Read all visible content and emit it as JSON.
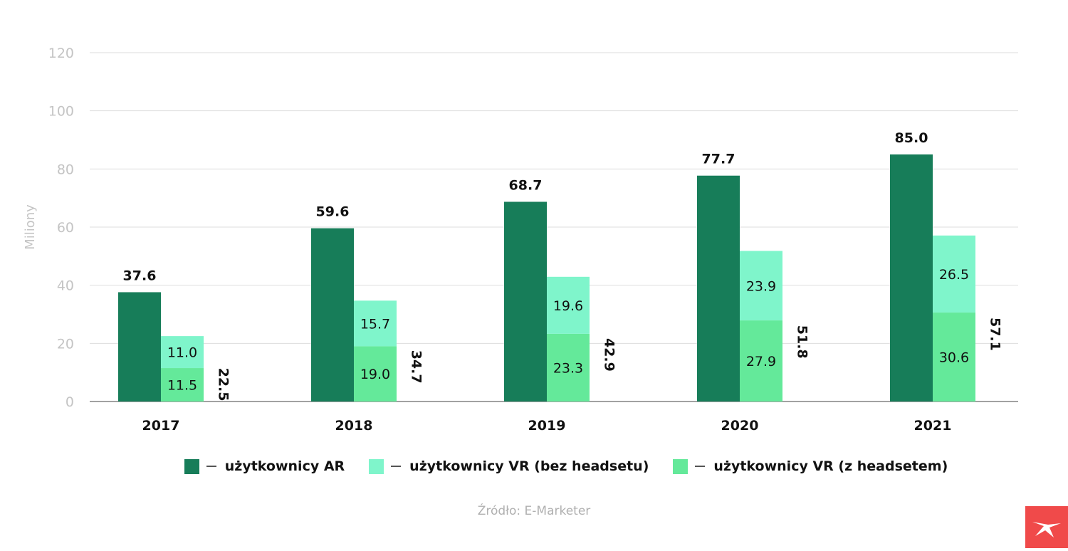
{
  "colors": {
    "ar": "#177d59",
    "vr_no_headset": "#7ff5cb",
    "vr_headset": "#64e99a",
    "grid": "#dddddd",
    "logo": "#f04a4a"
  },
  "chart_data": {
    "type": "bar",
    "ylabel": "Miliony",
    "ylim": [
      0,
      120
    ],
    "yticks": [
      0,
      20,
      40,
      60,
      80,
      100,
      120
    ],
    "categories": [
      "2017",
      "2018",
      "2019",
      "2020",
      "2021"
    ],
    "series": [
      {
        "name": "użytkownicy AR",
        "values": [
          37.6,
          59.6,
          68.7,
          77.7,
          85.0
        ],
        "labels": [
          "37.6",
          "59.6",
          "68.7",
          "77.7",
          "85.0"
        ]
      },
      {
        "name": "użytkownicy VR (bez headsetu)",
        "values": [
          11.0,
          15.7,
          19.6,
          23.9,
          26.5
        ],
        "labels": [
          "11.0",
          "15.7",
          "19.6",
          "23.9",
          "26.5"
        ]
      },
      {
        "name": "użytkownicy VR (z headsetem)",
        "values": [
          11.5,
          19.0,
          23.3,
          27.9,
          30.6
        ],
        "labels": [
          "11.5",
          "19.0",
          "23.3",
          "27.9",
          "30.6"
        ]
      }
    ],
    "vr_totals": [
      22.5,
      34.7,
      42.9,
      51.8,
      57.1
    ],
    "vr_total_labels": [
      "22.5",
      "34.7",
      "42.9",
      "51.8",
      "57.1"
    ]
  },
  "legend": {
    "items": [
      {
        "label": "użytkownicy AR"
      },
      {
        "label": "użytkownicy VR (bez headsetu)"
      },
      {
        "label": "użytkownicy VR (z headsetem)"
      }
    ]
  },
  "source": "Źródło: E-Marketer"
}
